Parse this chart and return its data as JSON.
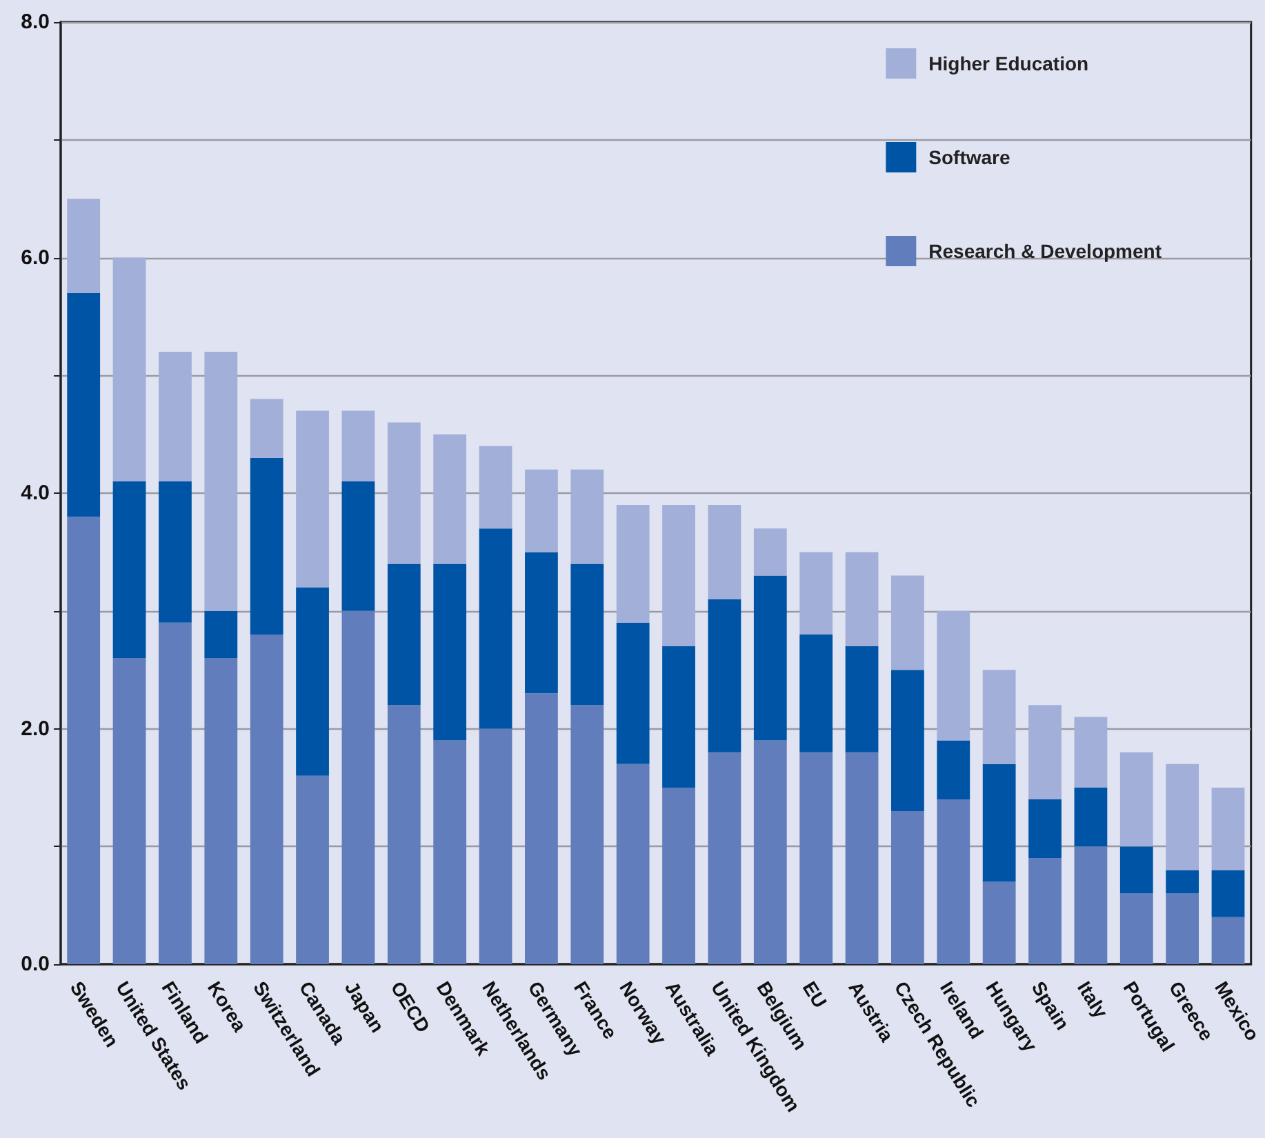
{
  "chart_data": {
    "type": "bar",
    "stacked": true,
    "categories": [
      "Sweden",
      "United States",
      "Finland",
      "Korea",
      "Switzerland",
      "Canada",
      "Japan",
      "OECD",
      "Denmark",
      "Netherlands",
      "Germany",
      "France",
      "Norway",
      "Australia",
      "United Kingdom",
      "Belgium",
      "EU",
      "Austria",
      "Czech Republic",
      "Ireland",
      "Hungary",
      "Spain",
      "Italy",
      "Portugal",
      "Greece",
      "Mexico"
    ],
    "series": [
      {
        "name": "Research & Development",
        "color": "#627dbb",
        "values": [
          3.8,
          2.6,
          2.9,
          2.6,
          2.8,
          1.6,
          3.0,
          2.2,
          1.9,
          2.0,
          2.3,
          2.2,
          1.7,
          1.5,
          1.8,
          1.9,
          1.8,
          1.8,
          1.3,
          1.4,
          0.7,
          0.9,
          1.0,
          0.6,
          0.6,
          0.4
        ]
      },
      {
        "name": "Software",
        "color": "#0054a6",
        "values": [
          1.9,
          1.5,
          1.2,
          0.4,
          1.5,
          1.6,
          1.1,
          1.2,
          1.5,
          1.7,
          1.2,
          1.2,
          1.2,
          1.2,
          1.3,
          1.4,
          1.0,
          0.9,
          1.2,
          0.5,
          1.0,
          0.5,
          0.5,
          0.4,
          0.2,
          0.4
        ]
      },
      {
        "name": "Higher Education",
        "color": "#a2afd8",
        "values": [
          0.8,
          1.9,
          1.1,
          2.2,
          0.5,
          1.5,
          0.6,
          1.2,
          1.1,
          0.7,
          0.7,
          0.8,
          1.0,
          1.2,
          0.8,
          0.4,
          0.7,
          0.8,
          0.8,
          1.1,
          0.8,
          0.8,
          0.6,
          0.8,
          0.9,
          0.7
        ]
      }
    ],
    "ylim": [
      0,
      8
    ],
    "yticks": [
      {
        "value": 0,
        "label": "0.0"
      },
      {
        "value": 1,
        "label": null
      },
      {
        "value": 2,
        "label": "2.0"
      },
      {
        "value": 3,
        "label": null
      },
      {
        "value": 4,
        "label": "4.0"
      },
      {
        "value": 5,
        "label": null
      },
      {
        "value": 6,
        "label": "6.0"
      },
      {
        "value": 7,
        "label": null
      },
      {
        "value": 8,
        "label": "8.0"
      }
    ],
    "grid": "y",
    "legend": "top right"
  }
}
